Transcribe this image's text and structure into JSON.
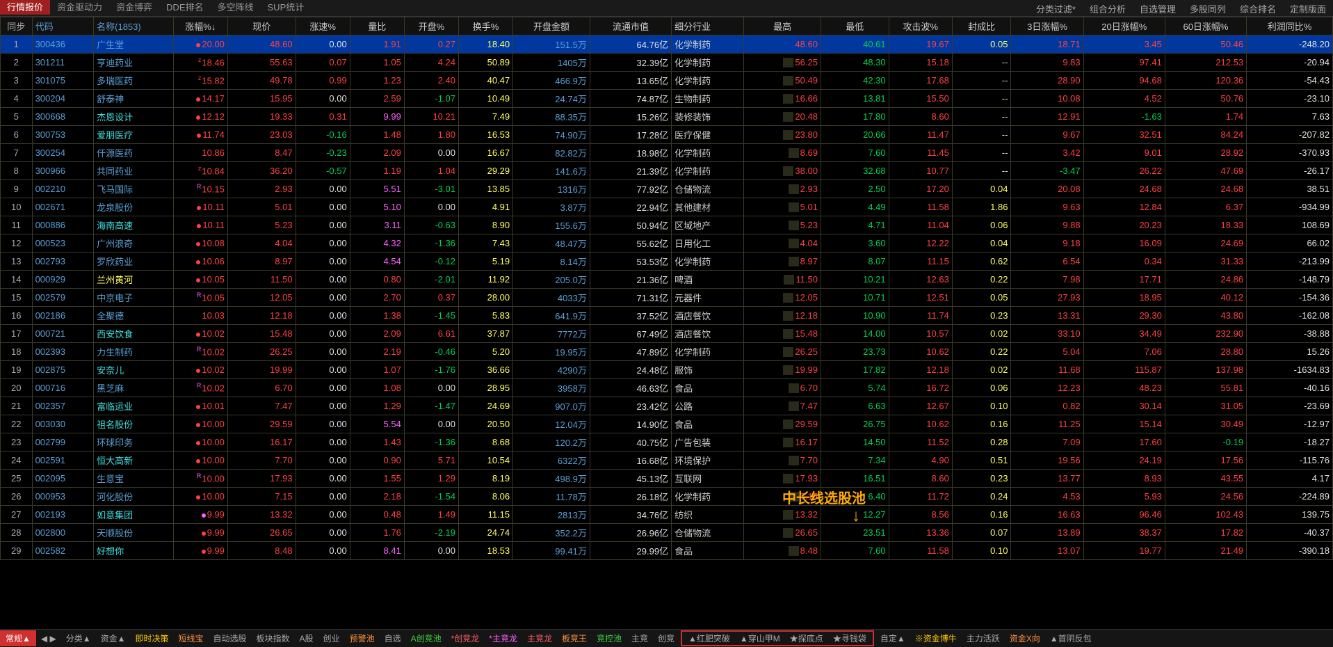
{
  "top_tabs": {
    "left": [
      "行情报价",
      "资金驱动力",
      "资金博弈",
      "DDE排名",
      "多空阵线",
      "SUP统计"
    ],
    "right": [
      "分类过滤*",
      "组合分析",
      "自选管理",
      "多股同列",
      "综合排名",
      "定制版面"
    ],
    "active": "行情报价"
  },
  "headers": [
    "同步",
    "代码",
    "名称(1853)",
    "涨幅%↓",
    "现价",
    "涨速%",
    "量比",
    "开盘%",
    "换手%",
    "开盘金额",
    "流通市值",
    "细分行业",
    "最高",
    "最低",
    "攻击波%",
    "封成比",
    "3日涨幅%",
    "20日涨幅%",
    "60日涨幅%",
    "利润同比%"
  ],
  "rows": [
    {
      "i": 1,
      "code": "300436",
      "name": "广生堂",
      "pct": "20.00",
      "pct_m": "r",
      "price": "48.60",
      "speed": "0.00",
      "ratio": "1.91",
      "open": "0.27",
      "turn": "18.40",
      "openamt": "151.5万",
      "mcap": "64.76亿",
      "ind": "化学制药",
      "high": "48.60",
      "low": "40.61",
      "atk": "19.67",
      "seal": "0.05",
      "d3": "18.71",
      "d20": "3.45",
      "d60": "50.46",
      "profit": "-248.20",
      "sel": true
    },
    {
      "i": 2,
      "code": "301211",
      "name": "亨迪药业",
      "pct": "18.46",
      "pct_m": "z",
      "price": "55.63",
      "speed": "0.07",
      "ratio": "1.05",
      "open": "4.24",
      "turn": "50.89",
      "openamt": "1405万",
      "mcap": "32.39亿",
      "ind": "化学制药",
      "high": "56.25",
      "low": "48.30",
      "atk": "15.18",
      "seal": "--",
      "d3": "9.83",
      "d20": "97.41",
      "d60": "212.53",
      "profit": "-20.94"
    },
    {
      "i": 3,
      "code": "301075",
      "name": "多瑞医药",
      "pct": "15.82",
      "pct_m": "z",
      "price": "49.78",
      "speed": "0.99",
      "ratio": "1.23",
      "open": "2.40",
      "turn": "40.47",
      "openamt": "466.9万",
      "mcap": "13.65亿",
      "ind": "化学制药",
      "high": "50.49",
      "low": "42.30",
      "atk": "17.68",
      "seal": "--",
      "d3": "28.90",
      "d20": "94.68",
      "d60": "120.36",
      "profit": "-54.43"
    },
    {
      "i": 4,
      "code": "300204",
      "name": "舒泰神",
      "pct": "14.17",
      "pct_m": "r",
      "price": "15.95",
      "speed": "0.00",
      "ratio": "2.59",
      "open": "-1.07",
      "turn": "10.49",
      "openamt": "24.74万",
      "mcap": "74.87亿",
      "ind": "生物制药",
      "high": "16.66",
      "low": "13.81",
      "atk": "15.50",
      "seal": "--",
      "d3": "10.08",
      "d20": "4.52",
      "d60": "50.76",
      "profit": "-23.10"
    },
    {
      "i": 5,
      "code": "300668",
      "name": "杰恩设计",
      "pct": "12.12",
      "pct_m": "r",
      "price": "19.33",
      "speed": "0.31",
      "ratio": "9.99",
      "open": "10.21",
      "turn": "7.49",
      "openamt": "88.35万",
      "mcap": "15.26亿",
      "ind": "装修装饰",
      "high": "20.48",
      "low": "17.80",
      "atk": "8.60",
      "seal": "--",
      "d3": "12.91",
      "d20": "-1.63",
      "d60": "1.74",
      "profit": "7.63",
      "name_c": "cyan"
    },
    {
      "i": 6,
      "code": "300753",
      "name": "爱朋医疗",
      "pct": "11.74",
      "pct_m": "r",
      "price": "23.03",
      "speed": "-0.16",
      "ratio": "1.48",
      "open": "1.80",
      "turn": "16.53",
      "openamt": "74.90万",
      "mcap": "17.28亿",
      "ind": "医疗保健",
      "high": "23.80",
      "low": "20.66",
      "atk": "11.47",
      "seal": "--",
      "d3": "9.67",
      "d20": "32.51",
      "d60": "84.24",
      "profit": "-207.82",
      "name_c": "cyan"
    },
    {
      "i": 7,
      "code": "300254",
      "name": "仟源医药",
      "pct": "10.86",
      "price": "8.47",
      "speed": "-0.23",
      "ratio": "2.09",
      "open": "0.00",
      "turn": "16.67",
      "openamt": "82.82万",
      "mcap": "18.98亿",
      "ind": "化学制药",
      "high": "8.69",
      "low": "7.60",
      "atk": "11.45",
      "seal": "--",
      "d3": "3.42",
      "d20": "9.01",
      "d60": "28.92",
      "profit": "-370.93"
    },
    {
      "i": 8,
      "code": "300966",
      "name": "共同药业",
      "pct": "10.84",
      "pct_m": "z",
      "price": "36.20",
      "speed": "-0.57",
      "ratio": "1.19",
      "open": "1.04",
      "turn": "29.29",
      "openamt": "141.6万",
      "mcap": "21.39亿",
      "ind": "化学制药",
      "high": "38.00",
      "low": "32.68",
      "atk": "10.77",
      "seal": "--",
      "d3": "-3.47",
      "d20": "26.22",
      "d60": "47.69",
      "profit": "-26.17"
    },
    {
      "i": 9,
      "code": "002210",
      "name": "飞马国际",
      "pct": "10.15",
      "pct_m": "R",
      "price": "2.93",
      "speed": "0.00",
      "ratio": "5.51",
      "open": "-3.01",
      "turn": "13.85",
      "openamt": "1316万",
      "mcap": "77.92亿",
      "ind": "仓储物流",
      "high": "2.93",
      "low": "2.50",
      "atk": "17.20",
      "seal": "0.04",
      "d3": "20.08",
      "d20": "24.68",
      "d60": "24.68",
      "profit": "38.51"
    },
    {
      "i": 10,
      "code": "002671",
      "name": "龙泉股份",
      "pct": "10.11",
      "pct_m": "r",
      "price": "5.01",
      "speed": "0.00",
      "ratio": "5.10",
      "open": "0.00",
      "turn": "4.91",
      "openamt": "3.87万",
      "mcap": "22.94亿",
      "ind": "其他建材",
      "high": "5.01",
      "low": "4.49",
      "atk": "11.58",
      "seal": "1.86",
      "d3": "9.63",
      "d20": "12.84",
      "d60": "6.37",
      "profit": "-934.99"
    },
    {
      "i": 11,
      "code": "000886",
      "name": "海南高速",
      "pct": "10.11",
      "pct_m": "r",
      "price": "5.23",
      "speed": "0.00",
      "ratio": "3.11",
      "open": "-0.63",
      "turn": "8.90",
      "openamt": "155.6万",
      "mcap": "50.94亿",
      "ind": "区域地产",
      "high": "5.23",
      "low": "4.71",
      "atk": "11.04",
      "seal": "0.06",
      "d3": "9.88",
      "d20": "20.23",
      "d60": "18.33",
      "profit": "108.69",
      "name_c": "cyan"
    },
    {
      "i": 12,
      "code": "000523",
      "name": "广州浪奇",
      "pct": "10.08",
      "pct_m": "r",
      "price": "4.04",
      "speed": "0.00",
      "ratio": "4.32",
      "open": "-1.36",
      "turn": "7.43",
      "openamt": "48.47万",
      "mcap": "55.62亿",
      "ind": "日用化工",
      "high": "4.04",
      "low": "3.60",
      "atk": "12.22",
      "seal": "0.04",
      "d3": "9.18",
      "d20": "16.09",
      "d60": "24.69",
      "profit": "66.02"
    },
    {
      "i": 13,
      "code": "002793",
      "name": "罗欣药业",
      "pct": "10.06",
      "pct_m": "r",
      "price": "8.97",
      "speed": "0.00",
      "ratio": "4.54",
      "open": "-0.12",
      "turn": "5.19",
      "openamt": "8.14万",
      "mcap": "53.53亿",
      "ind": "化学制药",
      "high": "8.97",
      "low": "8.07",
      "atk": "11.15",
      "seal": "0.62",
      "d3": "6.54",
      "d20": "0.34",
      "d60": "31.33",
      "profit": "-213.99"
    },
    {
      "i": 14,
      "code": "000929",
      "name": "兰州黄河",
      "pct": "10.05",
      "pct_m": "r",
      "price": "11.50",
      "speed": "0.00",
      "ratio": "0.80",
      "open": "-2.01",
      "turn": "11.92",
      "openamt": "205.0万",
      "mcap": "21.36亿",
      "ind": "啤酒",
      "high": "11.50",
      "low": "10.21",
      "atk": "12.63",
      "seal": "0.22",
      "d3": "7.98",
      "d20": "17.71",
      "d60": "24.86",
      "profit": "-148.79",
      "name_c": "yellow"
    },
    {
      "i": 15,
      "code": "002579",
      "name": "中京电子",
      "pct": "10.05",
      "pct_m": "R",
      "price": "12.05",
      "speed": "0.00",
      "ratio": "2.70",
      "open": "0.37",
      "turn": "28.00",
      "openamt": "4033万",
      "mcap": "71.31亿",
      "ind": "元器件",
      "high": "12.05",
      "low": "10.71",
      "atk": "12.51",
      "seal": "0.05",
      "d3": "27.93",
      "d20": "18.95",
      "d60": "40.12",
      "profit": "-154.36"
    },
    {
      "i": 16,
      "code": "002186",
      "name": "全聚德",
      "pct": "10.03",
      "price": "12.18",
      "speed": "0.00",
      "ratio": "1.38",
      "open": "-1.45",
      "turn": "5.83",
      "openamt": "641.9万",
      "mcap": "37.52亿",
      "ind": "酒店餐饮",
      "high": "12.18",
      "low": "10.90",
      "atk": "11.74",
      "seal": "0.23",
      "d3": "13.31",
      "d20": "29.30",
      "d60": "43.80",
      "profit": "-162.08"
    },
    {
      "i": 17,
      "code": "000721",
      "name": "西安饮食",
      "pct": "10.02",
      "pct_m": "r",
      "price": "15.48",
      "speed": "0.00",
      "ratio": "2.09",
      "open": "6.61",
      "turn": "37.87",
      "openamt": "7772万",
      "mcap": "67.49亿",
      "ind": "酒店餐饮",
      "high": "15.48",
      "low": "14.00",
      "atk": "10.57",
      "seal": "0.02",
      "d3": "33.10",
      "d20": "34.49",
      "d60": "232.90",
      "profit": "-38.88",
      "name_c": "cyan"
    },
    {
      "i": 18,
      "code": "002393",
      "name": "力生制药",
      "pct": "10.02",
      "pct_m": "R",
      "price": "26.25",
      "speed": "0.00",
      "ratio": "2.19",
      "open": "-0.46",
      "turn": "5.20",
      "openamt": "19.95万",
      "mcap": "47.89亿",
      "ind": "化学制药",
      "high": "26.25",
      "low": "23.73",
      "atk": "10.62",
      "seal": "0.22",
      "d3": "5.04",
      "d20": "7.06",
      "d60": "28.80",
      "profit": "15.26"
    },
    {
      "i": 19,
      "code": "002875",
      "name": "安奈儿",
      "pct": "10.02",
      "pct_m": "r",
      "price": "19.99",
      "speed": "0.00",
      "ratio": "1.07",
      "open": "-1.76",
      "turn": "36.66",
      "openamt": "4290万",
      "mcap": "24.48亿",
      "ind": "服饰",
      "high": "19.99",
      "low": "17.82",
      "atk": "12.18",
      "seal": "0.02",
      "d3": "11.68",
      "d20": "115.87",
      "d60": "137.98",
      "profit": "-1634.83",
      "name_c": "cyan"
    },
    {
      "i": 20,
      "code": "000716",
      "name": "黑芝麻",
      "pct": "10.02",
      "pct_m": "R",
      "price": "6.70",
      "speed": "0.00",
      "ratio": "1.08",
      "open": "0.00",
      "turn": "28.95",
      "openamt": "3958万",
      "mcap": "46.63亿",
      "ind": "食品",
      "high": "6.70",
      "low": "5.74",
      "atk": "16.72",
      "seal": "0.06",
      "d3": "12.23",
      "d20": "48.23",
      "d60": "55.81",
      "profit": "-40.16"
    },
    {
      "i": 21,
      "code": "002357",
      "name": "富临运业",
      "pct": "10.01",
      "pct_m": "r",
      "price": "7.47",
      "speed": "0.00",
      "ratio": "1.29",
      "open": "-1.47",
      "turn": "24.69",
      "openamt": "907.0万",
      "mcap": "23.42亿",
      "ind": "公路",
      "high": "7.47",
      "low": "6.63",
      "atk": "12.67",
      "seal": "0.10",
      "d3": "0.82",
      "d20": "30.14",
      "d60": "31.05",
      "profit": "-23.69",
      "name_c": "cyan"
    },
    {
      "i": 22,
      "code": "003030",
      "name": "祖名股份",
      "pct": "10.00",
      "pct_m": "r",
      "price": "29.59",
      "speed": "0.00",
      "ratio": "5.54",
      "open": "0.00",
      "turn": "20.50",
      "openamt": "12.04万",
      "mcap": "14.90亿",
      "ind": "食品",
      "high": "29.59",
      "low": "26.75",
      "atk": "10.62",
      "seal": "0.16",
      "d3": "11.25",
      "d20": "15.14",
      "d60": "30.49",
      "profit": "-12.97",
      "name_c": "cyan"
    },
    {
      "i": 23,
      "code": "002799",
      "name": "环球印务",
      "pct": "10.00",
      "pct_m": "r",
      "price": "16.17",
      "speed": "0.00",
      "ratio": "1.43",
      "open": "-1.36",
      "turn": "8.68",
      "openamt": "120.2万",
      "mcap": "40.75亿",
      "ind": "广告包装",
      "high": "16.17",
      "low": "14.50",
      "atk": "11.52",
      "seal": "0.28",
      "d3": "7.09",
      "d20": "17.60",
      "d60": "-0.19",
      "profit": "-18.27"
    },
    {
      "i": 24,
      "code": "002591",
      "name": "恒大高新",
      "pct": "10.00",
      "pct_m": "r",
      "price": "7.70",
      "speed": "0.00",
      "ratio": "0.90",
      "open": "5.71",
      "turn": "10.54",
      "openamt": "6322万",
      "mcap": "16.68亿",
      "ind": "环境保护",
      "high": "7.70",
      "low": "7.34",
      "atk": "4.90",
      "seal": "0.51",
      "d3": "19.56",
      "d20": "24.19",
      "d60": "17.56",
      "profit": "-115.76",
      "name_c": "cyan"
    },
    {
      "i": 25,
      "code": "002095",
      "name": "生意宝",
      "pct": "10.00",
      "pct_m": "R",
      "price": "17.93",
      "speed": "0.00",
      "ratio": "1.55",
      "open": "1.29",
      "turn": "8.19",
      "openamt": "498.9万",
      "mcap": "45.13亿",
      "ind": "互联网",
      "high": "17.93",
      "low": "16.51",
      "atk": "8.60",
      "seal": "0.23",
      "d3": "13.77",
      "d20": "8.93",
      "d60": "43.55",
      "profit": "4.17"
    },
    {
      "i": 26,
      "code": "000953",
      "name": "河化股份",
      "pct": "10.00",
      "pct_m": "r",
      "price": "7.15",
      "speed": "0.00",
      "ratio": "2.18",
      "open": "-1.54",
      "turn": "8.06",
      "openamt": "11.78万",
      "mcap": "26.18亿",
      "ind": "化学制药",
      "high": "7.15",
      "low": "6.40",
      "atk": "11.72",
      "seal": "0.24",
      "d3": "4.53",
      "d20": "5.93",
      "d60": "24.56",
      "profit": "-224.89"
    },
    {
      "i": 27,
      "code": "002193",
      "name": "如意集团",
      "pct": "9.99",
      "pct_m": "m",
      "price": "13.32",
      "speed": "0.00",
      "ratio": "0.48",
      "open": "1.49",
      "turn": "11.15",
      "openamt": "2813万",
      "mcap": "34.76亿",
      "ind": "纺织",
      "high": "13.32",
      "low": "12.27",
      "atk": "8.56",
      "seal": "0.16",
      "d3": "16.63",
      "d20": "96.46",
      "d60": "102.43",
      "profit": "139.75",
      "name_c": "cyan"
    },
    {
      "i": 28,
      "code": "002800",
      "name": "天顺股份",
      "pct": "9.99",
      "pct_m": "r",
      "price": "26.65",
      "speed": "0.00",
      "ratio": "1.76",
      "open": "-2.19",
      "turn": "24.74",
      "openamt": "352.2万",
      "mcap": "26.96亿",
      "ind": "仓储物流",
      "high": "26.65",
      "low": "23.51",
      "atk": "13.36",
      "seal": "0.07",
      "d3": "13.89",
      "d20": "38.37",
      "d60": "17.82",
      "profit": "-40.37"
    },
    {
      "i": 29,
      "code": "002582",
      "name": "好想你",
      "pct": "9.99",
      "pct_m": "r",
      "price": "8.48",
      "speed": "0.00",
      "ratio": "8.41",
      "open": "0.00",
      "turn": "18.53",
      "openamt": "99.41万",
      "mcap": "29.99亿",
      "ind": "食品",
      "high": "8.48",
      "low": "7.60",
      "atk": "11.58",
      "seal": "0.10",
      "d3": "13.07",
      "d20": "19.77",
      "d60": "21.49",
      "profit": "-390.18",
      "name_c": "cyan"
    }
  ],
  "bottom": {
    "items_l": [
      {
        "t": "常规▲",
        "c": "bb-active"
      },
      {
        "t": "◀ ▶",
        "c": ""
      },
      {
        "t": "分类▲",
        "c": ""
      },
      {
        "t": "资金▲",
        "c": ""
      },
      {
        "t": "即时决策",
        "c": "bb-yellow"
      },
      {
        "t": "短线宝",
        "c": "bb-orange"
      },
      {
        "t": "自动选股",
        "c": ""
      },
      {
        "t": "板块指数",
        "c": ""
      },
      {
        "t": "A股",
        "c": ""
      },
      {
        "t": "创业",
        "c": ""
      },
      {
        "t": "预警池",
        "c": "bb-orange"
      },
      {
        "t": "自选",
        "c": ""
      },
      {
        "t": "A创竞池",
        "c": "bb-green"
      },
      {
        "t": "*创竞龙",
        "c": "bb-red"
      },
      {
        "t": "*主竞龙",
        "c": "bb-magenta"
      },
      {
        "t": "主竞龙",
        "c": "bb-red"
      },
      {
        "t": "板竞王",
        "c": "bb-orange"
      },
      {
        "t": "竞控池",
        "c": "bb-green"
      },
      {
        "t": "主竞",
        "c": ""
      },
      {
        "t": "创竞",
        "c": ""
      }
    ],
    "box": [
      "▲红肥突破",
      "▲穿山甲M",
      "★探底点",
      "★寻钱袋"
    ],
    "items_r": [
      {
        "t": "自定▲",
        "c": ""
      },
      {
        "t": "※资金博牛",
        "c": "bb-yellow"
      },
      {
        "t": "主力活跃",
        "c": ""
      },
      {
        "t": "资金X向",
        "c": "bb-orange"
      },
      {
        "t": "▲首阴反包",
        "c": ""
      }
    ]
  },
  "annotation": "中长线选股池"
}
